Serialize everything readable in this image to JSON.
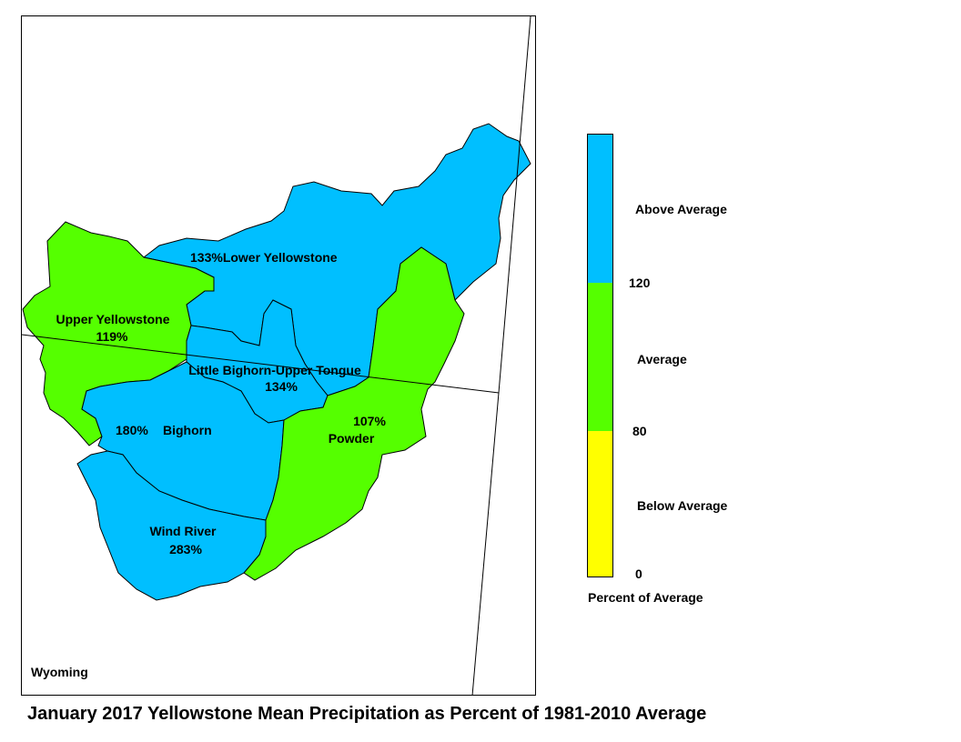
{
  "title": "January 2017 Yellowstone Mean Precipitation as Percent of 1981-2010 Average",
  "state_label": "Wyoming",
  "colors": {
    "above": "#00bfff",
    "average": "#55ff00",
    "below": "#ffff00",
    "boundary": "#000000"
  },
  "basins": [
    {
      "name": "Lower Yellowstone",
      "percent": "133%",
      "category": "above"
    },
    {
      "name": "Upper Yellowstone",
      "percent": "119%",
      "category": "average"
    },
    {
      "name": "Little Bighorn-Upper Tongue",
      "percent": "134%",
      "category": "above"
    },
    {
      "name": "Bighorn",
      "percent": "180%",
      "category": "above"
    },
    {
      "name": "Powder",
      "percent": "107%",
      "category": "average"
    },
    {
      "name": "Wind River",
      "percent": "283%",
      "category": "above"
    }
  ],
  "legend": {
    "title": "Percent of Average",
    "above_label": "Above Average",
    "average_label": "Average",
    "below_label": "Below Average",
    "tick_120": "120",
    "tick_80": "80",
    "tick_0": "0"
  }
}
